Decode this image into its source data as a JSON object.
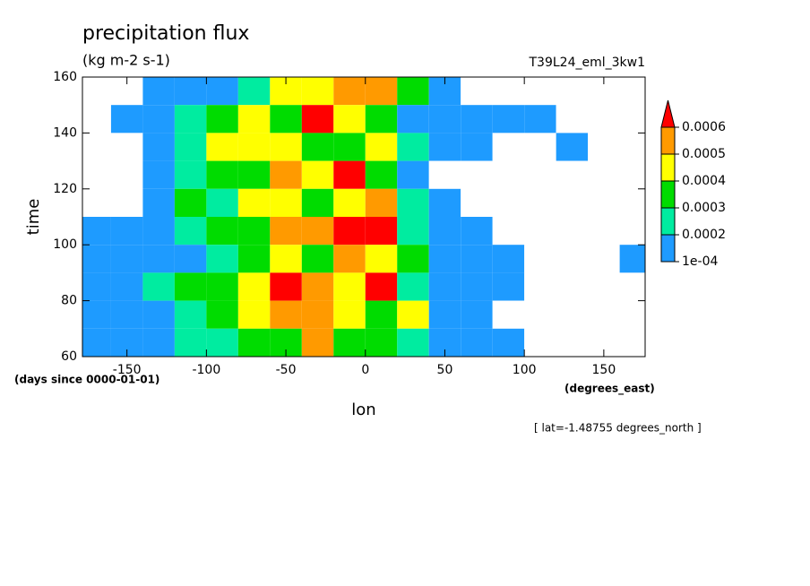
{
  "chart_data": {
    "type": "heatmap",
    "title": "precipitation flux",
    "subtitle": "(kg m-2 s-1)",
    "run_label": "T39L24_eml_3kw1",
    "x_label": "lon",
    "y_label": "time",
    "y_units": "(days since 0000-01-01)",
    "x_units": "(degrees_east)",
    "annotation": "[ lat=-1.48755 degrees_north ]",
    "x": [
      -170,
      -150,
      -130,
      -110,
      -90,
      -70,
      -50,
      -30,
      -10,
      10,
      30,
      50,
      70,
      90,
      110,
      130,
      150,
      170
    ],
    "y": [
      155,
      145,
      135,
      125,
      115,
      105,
      95,
      85,
      75,
      65
    ],
    "z": [
      [
        0,
        5e-05,
        0.00012,
        0.00015,
        0.00018,
        0.00025,
        0.0004,
        0.00045,
        0.0005,
        0.00055,
        0.0003,
        0.00012,
        8e-05,
        5e-05,
        0,
        0,
        0,
        0
      ],
      [
        0,
        0.00011,
        0.00015,
        0.0002,
        0.00035,
        0.00045,
        0.0003,
        0.00065,
        0.0004,
        0.0003,
        0.00015,
        0.00012,
        0.00011,
        0.00011,
        0.00011,
        5e-05,
        0,
        0
      ],
      [
        0,
        5e-05,
        0.00012,
        0.00025,
        0.00045,
        0.0004,
        0.00045,
        0.00035,
        0.0003,
        0.0004,
        0.00025,
        0.00012,
        0.00011,
        5e-05,
        0,
        0.00011,
        5e-05,
        0
      ],
      [
        0,
        0,
        0.00011,
        0.00025,
        0.00035,
        0.0003,
        0.00055,
        0.00045,
        0.0006,
        0.00035,
        0.00015,
        8e-05,
        5e-05,
        0,
        0,
        0,
        0,
        0
      ],
      [
        0,
        5e-05,
        0.00015,
        0.0003,
        0.00025,
        0.00045,
        0.0004,
        0.00035,
        0.00045,
        0.0005,
        0.00025,
        0.00011,
        5e-05,
        5e-05,
        0,
        0,
        0,
        0
      ],
      [
        0.00011,
        0.00011,
        0.00015,
        0.00025,
        0.0003,
        0.00035,
        0.0005,
        0.00055,
        0.0006,
        0.00065,
        0.0002,
        0.00012,
        0.00011,
        5e-05,
        0,
        0,
        0,
        0
      ],
      [
        0.00011,
        0.00012,
        0.00015,
        0.00018,
        0.00025,
        0.00035,
        0.00045,
        0.0003,
        0.0005,
        0.00045,
        0.0003,
        0.00012,
        0.00011,
        0.00011,
        5e-05,
        5e-05,
        0,
        0.00011
      ],
      [
        0.00011,
        0.00015,
        0.0002,
        0.00035,
        0.0003,
        0.0004,
        0.0006,
        0.0005,
        0.00045,
        0.0006,
        0.00025,
        0.00015,
        0.00011,
        0.00011,
        5e-05,
        0,
        0,
        0
      ],
      [
        0.00011,
        0.00012,
        0.00015,
        0.00025,
        0.0003,
        0.00045,
        0.0005,
        0.00055,
        0.0004,
        0.00035,
        0.0004,
        0.00015,
        0.00011,
        5e-05,
        5e-05,
        0,
        0,
        0
      ],
      [
        0.00011,
        0.00012,
        0.00015,
        0.0002,
        0.00025,
        0.0003,
        0.00035,
        0.0005,
        0.00035,
        0.0003,
        0.00025,
        0.00015,
        0.00011,
        0.00011,
        5e-05,
        0,
        0,
        0
      ]
    ],
    "levels": [
      {
        "value": 0.0001,
        "label": "1e-04"
      },
      0.0002,
      0.0003,
      0.0004,
      0.0005,
      0.0006
    ],
    "colors": [
      "#1e9bff",
      "#00eca0",
      "#00dc00",
      "#ffff00",
      "#ff9a00",
      "#ff0000"
    ],
    "xlim": [
      -178,
      176
    ],
    "ylim": [
      60,
      160
    ],
    "xticks": [
      -150,
      -100,
      -50,
      0,
      50,
      100,
      150
    ],
    "yticks": [
      60,
      80,
      100,
      120,
      140,
      160
    ]
  }
}
